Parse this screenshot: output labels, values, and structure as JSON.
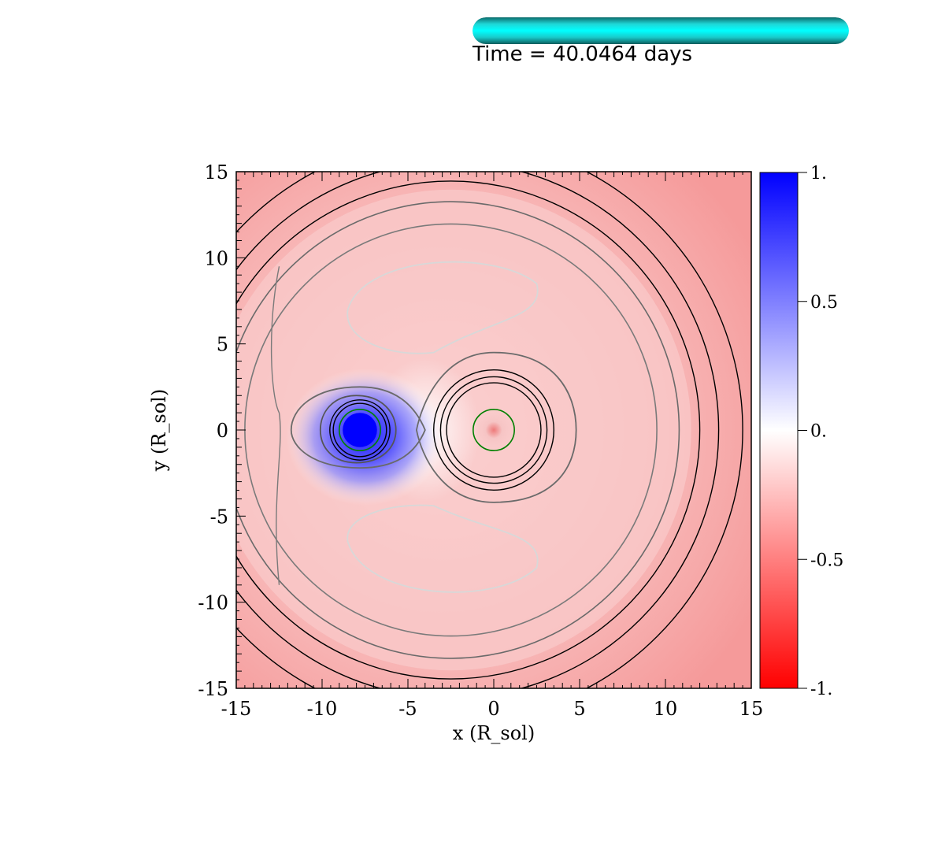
{
  "header": {
    "time_label": "Time = 40.0464 days",
    "progress_fraction": 1.0,
    "progress_color": "#00ffff"
  },
  "chart_data": {
    "type": "heatmap",
    "title": "",
    "xlabel": "x (R_sol)",
    "ylabel": "y (R_sol)",
    "xlim": [
      -15,
      15
    ],
    "ylim": [
      -15,
      15
    ],
    "x_ticks": [
      -15,
      -10,
      -5,
      0,
      5,
      10,
      15
    ],
    "x_tick_labels": [
      "-15",
      "-10",
      "-5",
      "0",
      "5",
      "10",
      "15"
    ],
    "y_ticks": [
      -15,
      -10,
      -5,
      0,
      5,
      10,
      15
    ],
    "y_tick_labels": [
      "-15",
      "-10",
      "-5",
      "0",
      "5",
      "10",
      "15"
    ],
    "grid": false,
    "colorbar": {
      "range": [
        -1,
        1
      ],
      "colors": [
        "#ff0000",
        "#ffffff",
        "#0000ff"
      ],
      "ticks": [
        1,
        0.5,
        0,
        -0.5,
        -1
      ],
      "tick_labels": [
        "1.",
        "0.5",
        "0.",
        "-0.5",
        "-1."
      ]
    },
    "field": {
      "background_value": -0.45,
      "features": [
        {
          "name": "blue-star",
          "x": -7.8,
          "y": 0.0,
          "core_radius": 1.0,
          "halo_radius": 4.0,
          "value": 1.0
        },
        {
          "name": "companion",
          "x": 0.0,
          "y": 0.0,
          "radius": 1.2,
          "value": -0.3
        }
      ]
    },
    "green_circles": [
      {
        "x": -7.8,
        "y": 0.0,
        "r": 1.2
      },
      {
        "x": 0.0,
        "y": 0.0,
        "r": 1.2
      }
    ],
    "black_circles": [
      {
        "x": -7.8,
        "y": 0.0,
        "r": 1.55
      },
      {
        "x": -7.8,
        "y": 0.0,
        "r": 1.75
      },
      {
        "x": 0.0,
        "y": 0.0,
        "r": 2.75
      },
      {
        "x": 0.0,
        "y": 0.0,
        "r": 3.1
      },
      {
        "x": 0.0,
        "y": 0.0,
        "r": 3.5
      },
      {
        "x": -2.5,
        "y": 0.0,
        "r": 14.5
      },
      {
        "x": -2.5,
        "y": 0.0,
        "r": 15.6
      },
      {
        "x": -2.5,
        "y": 0.0,
        "r": 17.0
      }
    ],
    "gray_circles": [
      {
        "x": -2.5,
        "y": 0.0,
        "r": 12.0,
        "color": "#7a7a7a"
      },
      {
        "x": -2.5,
        "y": 0.0,
        "r": 13.3,
        "color": "#6a6a6a"
      }
    ]
  }
}
